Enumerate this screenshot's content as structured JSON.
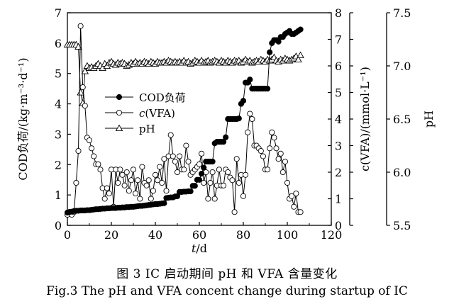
{
  "chart_data": {
    "type": "line",
    "title": "",
    "xlabel": "t/d",
    "xlim": [
      0,
      120
    ],
    "xticks": [
      0,
      20,
      40,
      60,
      80,
      100,
      120
    ],
    "axes": {
      "left": {
        "label": "COD负荷/(kg·m⁻³·d⁻¹)",
        "lim": [
          0,
          7
        ],
        "ticks": [
          0,
          1,
          2,
          3,
          4,
          5,
          6,
          7
        ]
      },
      "mid": {
        "label": "c(VFA)/(mmol·L⁻¹)",
        "lim": [
          0,
          8
        ],
        "ticks": [
          0,
          1,
          2,
          3,
          4,
          5,
          6,
          7,
          8
        ]
      },
      "right": {
        "label": "pH",
        "lim": [
          5.5,
          7.5
        ],
        "ticks": [
          5.5,
          6.0,
          6.5,
          7.0,
          7.5
        ]
      }
    },
    "grid": false,
    "legend_position": "center-left",
    "series": [
      {
        "name": "COD负荷",
        "marker": "filled-circle",
        "axis": "left",
        "x": [
          0,
          1,
          2,
          3,
          4,
          5,
          6,
          7,
          8,
          9,
          10,
          11,
          12,
          13,
          14,
          15,
          16,
          17,
          18,
          19,
          20,
          21,
          22,
          23,
          24,
          25,
          26,
          27,
          28,
          29,
          30,
          31,
          32,
          33,
          34,
          35,
          36,
          37,
          38,
          39,
          40,
          41,
          42,
          43,
          44,
          45,
          46,
          47,
          48,
          49,
          50,
          51,
          52,
          53,
          54,
          55,
          56,
          57,
          58,
          59,
          60,
          61,
          62,
          63,
          64,
          65,
          66,
          67,
          68,
          69,
          70,
          71,
          72,
          73,
          74,
          75,
          76,
          77,
          78,
          79,
          80,
          81,
          82,
          83,
          84,
          85,
          86,
          87,
          88,
          89,
          90,
          91,
          92,
          93,
          94,
          95,
          96,
          97,
          98,
          99,
          100,
          101,
          102,
          103,
          104,
          105,
          106
        ],
        "y": [
          0.42,
          0.44,
          0.45,
          0.47,
          0.48,
          0.48,
          0.49,
          0.49,
          0.49,
          0.5,
          0.5,
          0.51,
          0.52,
          0.53,
          0.53,
          0.54,
          0.55,
          0.55,
          0.56,
          0.56,
          0.57,
          0.57,
          0.57,
          0.58,
          0.58,
          0.59,
          0.59,
          0.6,
          0.6,
          0.61,
          0.61,
          0.62,
          0.63,
          0.64,
          0.64,
          0.65,
          0.66,
          0.67,
          0.68,
          0.69,
          0.7,
          0.7,
          0.71,
          0.72,
          0.73,
          0.9,
          0.91,
          0.92,
          0.92,
          0.95,
          0.96,
          1.1,
          1.1,
          1.11,
          1.11,
          1.12,
          1.12,
          1.3,
          1.3,
          1.5,
          1.5,
          1.7,
          1.9,
          2.1,
          2.1,
          2.1,
          2.1,
          2.7,
          2.75,
          2.75,
          2.75,
          2.75,
          2.9,
          3.5,
          3.5,
          3.5,
          3.5,
          3.5,
          3.52,
          4.0,
          4.1,
          4.7,
          4.7,
          4.8,
          4.5,
          4.5,
          4.5,
          4.5,
          4.5,
          4.5,
          4.5,
          4.5,
          5.7,
          6.0,
          6.1,
          6.1,
          6.05,
          6.2,
          6.2,
          6.3,
          6.35,
          6.4,
          6.3,
          6.3,
          6.35,
          6.4,
          6.45
        ]
      },
      {
        "name": "c(VFA)",
        "marker": "open-circle",
        "axis": "mid",
        "x": [
          0,
          1,
          2,
          3,
          4,
          5,
          6,
          7,
          8,
          9,
          10,
          11,
          12,
          13,
          14,
          15,
          16,
          17,
          18,
          19,
          20,
          21,
          22,
          23,
          24,
          25,
          26,
          27,
          28,
          29,
          30,
          31,
          32,
          33,
          34,
          35,
          36,
          37,
          38,
          39,
          40,
          41,
          42,
          43,
          44,
          45,
          46,
          47,
          48,
          49,
          50,
          51,
          52,
          53,
          54,
          55,
          56,
          57,
          58,
          59,
          60,
          61,
          62,
          63,
          64,
          65,
          66,
          67,
          68,
          69,
          70,
          71,
          72,
          73,
          74,
          75,
          76,
          77,
          78,
          79,
          80,
          81,
          82,
          83,
          84,
          85,
          86,
          87,
          88,
          89,
          90,
          91,
          92,
          93,
          94,
          95,
          96,
          97,
          98,
          99,
          100,
          101,
          102,
          103,
          104,
          105,
          106
        ],
        "y": [
          0.4,
          0.5,
          0.4,
          0.5,
          1.6,
          2.8,
          7.5,
          5.2,
          4.5,
          3.3,
          3.2,
          2.9,
          2.6,
          2.3,
          2.3,
          2.1,
          1.4,
          1.0,
          1.4,
          1.2,
          2.1,
          0.7,
          2.1,
          1.6,
          2.1,
          1.9,
          1.5,
          2.0,
          1.3,
          1.7,
          2.1,
          1.2,
          1.7,
          1.0,
          2.2,
          1.6,
          1.5,
          1.7,
          1.0,
          1.3,
          1.9,
          1.7,
          2.2,
          1.6,
          2.5,
          1.3,
          2.6,
          3.4,
          2.6,
          2.4,
          2.0,
          2.6,
          2.1,
          2.1,
          3.0,
          2.4,
          1.9,
          2.0,
          2.1,
          2.2,
          2.3,
          2.7,
          1.6,
          2.0,
          1.0,
          1.6,
          2.0,
          1.0,
          1.5,
          2.1,
          1.5,
          1.5,
          2.1,
          2.0,
          1.8,
          1.7,
          0.5,
          2.5,
          1.6,
          1.9,
          1.1,
          1.9,
          3.5,
          4.2,
          4.0,
          3.0,
          3.0,
          2.9,
          2.8,
          2.6,
          2.1,
          2.1,
          2.9,
          3.5,
          3.3,
          2.9,
          2.5,
          2.7,
          2.0,
          2.4,
          1.6,
          1.0,
          1.1,
          0.7,
          1.2,
          0.5,
          0.5
        ]
      },
      {
        "name": "pH",
        "marker": "open-triangle",
        "axis": "right",
        "x": [
          0,
          1,
          2,
          3,
          4,
          5,
          6,
          7,
          8,
          9,
          10,
          11,
          12,
          13,
          14,
          15,
          16,
          17,
          18,
          19,
          20,
          21,
          22,
          23,
          24,
          25,
          26,
          27,
          28,
          29,
          30,
          31,
          32,
          33,
          34,
          35,
          36,
          37,
          38,
          39,
          40,
          41,
          42,
          43,
          44,
          45,
          46,
          47,
          48,
          49,
          50,
          51,
          52,
          53,
          54,
          55,
          56,
          57,
          58,
          59,
          60,
          61,
          62,
          63,
          64,
          65,
          66,
          67,
          68,
          69,
          70,
          71,
          72,
          73,
          74,
          75,
          76,
          77,
          78,
          79,
          80,
          81,
          82,
          83,
          84,
          85,
          86,
          87,
          88,
          89,
          90,
          91,
          92,
          93,
          94,
          95,
          96,
          97,
          98,
          99,
          100,
          101,
          102,
          103,
          104,
          105,
          106
        ],
        "y": [
          7.2,
          7.2,
          7.2,
          7.2,
          7.2,
          7.18,
          6.75,
          6.65,
          6.95,
          7.0,
          6.98,
          6.99,
          6.98,
          7.0,
          7.02,
          7.0,
          6.98,
          7.02,
          7.0,
          7.03,
          7.04,
          7.02,
          7.01,
          7.03,
          7.02,
          7.03,
          7.02,
          7.0,
          7.01,
          7.03,
          7.02,
          7.04,
          7.02,
          7.03,
          7.02,
          7.04,
          7.03,
          7.02,
          7.04,
          7.03,
          7.02,
          7.04,
          7.03,
          7.03,
          7.04,
          7.03,
          7.05,
          7.04,
          7.03,
          7.04,
          7.03,
          7.04,
          7.03,
          7.05,
          7.03,
          7.04,
          7.02,
          7.03,
          7.05,
          7.04,
          7.03,
          7.05,
          7.03,
          7.04,
          7.05,
          7.03,
          7.04,
          7.05,
          7.04,
          7.03,
          7.05,
          7.04,
          7.03,
          7.05,
          7.04,
          7.03,
          7.05,
          7.04,
          7.05,
          7.03,
          7.04,
          7.06,
          7.04,
          7.05,
          7.03,
          7.04,
          7.05,
          7.04,
          7.06,
          7.05,
          7.04,
          7.06,
          7.05,
          7.06,
          7.08,
          7.05,
          7.04,
          7.06,
          7.05,
          7.07,
          7.06,
          7.05,
          7.06,
          7.07,
          7.09,
          7.06,
          7.1
        ]
      }
    ]
  },
  "captions": {
    "cn": "图 3   IC 启动期间 pH 和 VFA 含量变化",
    "en": "Fig.3    The pH and VFA concent change during startup of IC"
  }
}
